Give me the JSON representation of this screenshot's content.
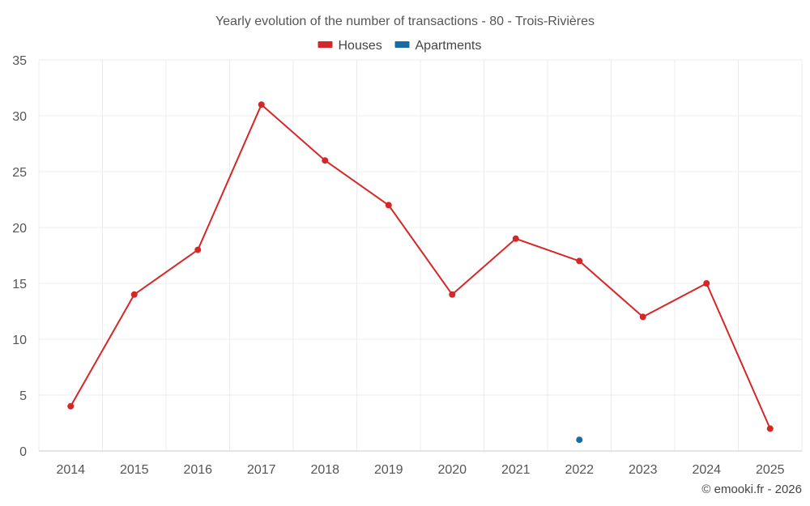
{
  "chart_data": {
    "type": "line",
    "title": "Yearly evolution of the number of transactions - 80 - Trois-Rivières",
    "categories": [
      "2014",
      "2015",
      "2016",
      "2017",
      "2018",
      "2019",
      "2020",
      "2021",
      "2022",
      "2023",
      "2024",
      "2025"
    ],
    "series": [
      {
        "name": "Houses",
        "color": "#d62728",
        "values": [
          4,
          14,
          18,
          31,
          26,
          22,
          14,
          19,
          17,
          12,
          15,
          2
        ]
      },
      {
        "name": "Apartments",
        "color": "#1a6aa6",
        "values": [
          null,
          null,
          null,
          null,
          null,
          null,
          null,
          null,
          1,
          null,
          null,
          null
        ]
      }
    ],
    "ylim": [
      0,
      35
    ],
    "yticks": [
      0,
      5,
      10,
      15,
      20,
      25,
      30,
      35
    ],
    "xlabel": "",
    "ylabel": "",
    "grid": true,
    "legend": "top-center"
  },
  "credit": "© emooki.fr - 2026"
}
